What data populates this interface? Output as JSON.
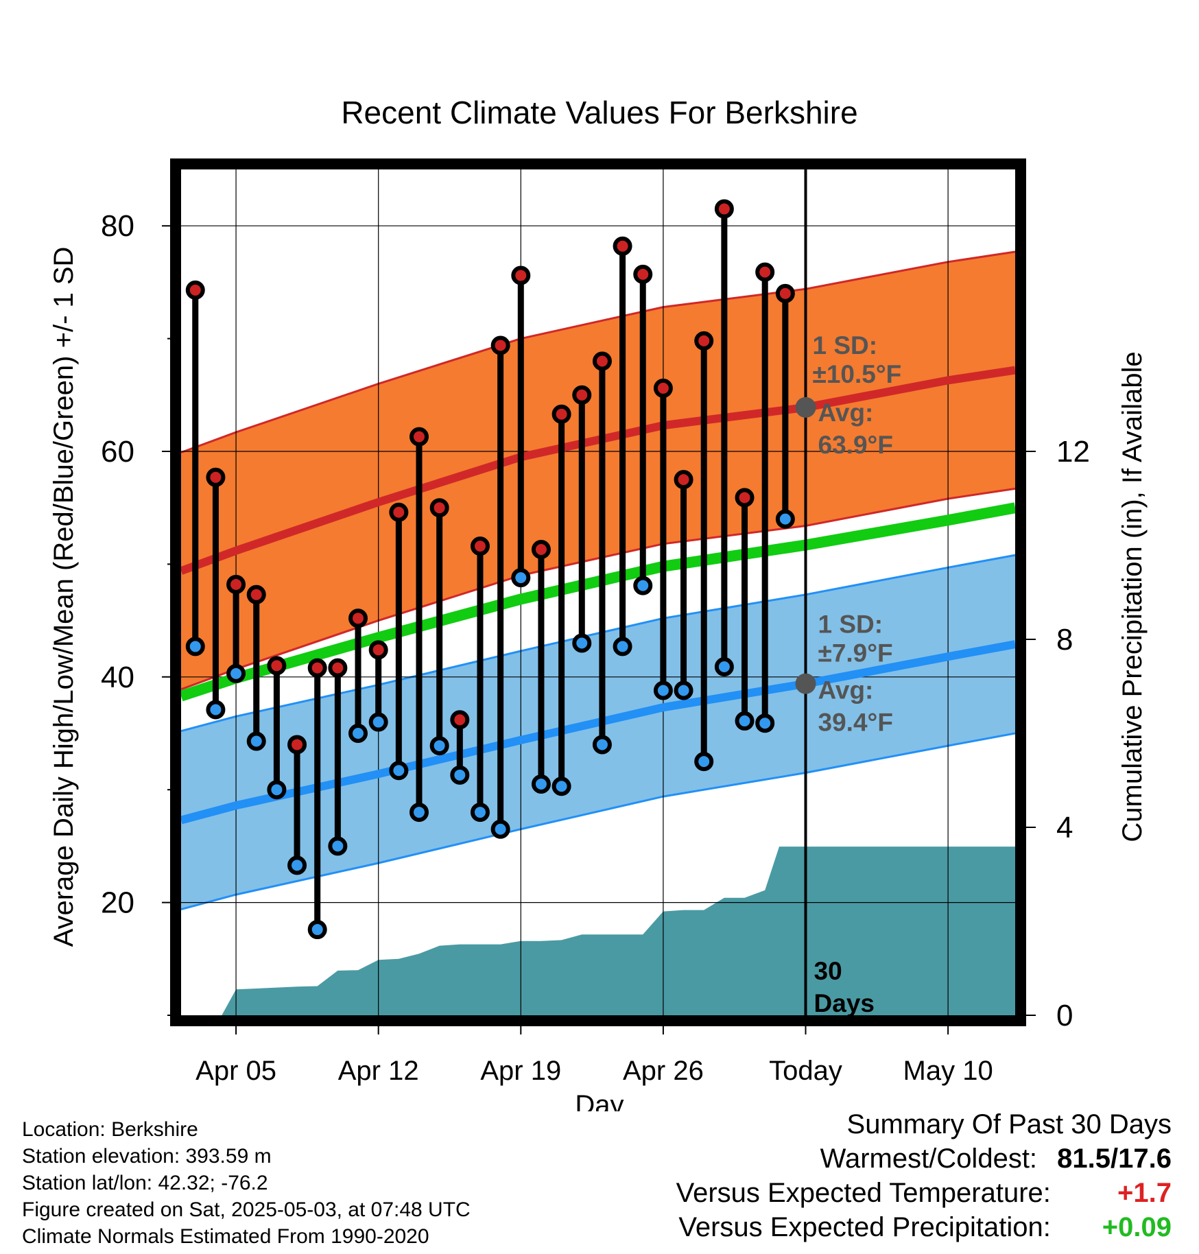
{
  "chart_data": {
    "type": "line",
    "title": "Recent Climate Values For Berkshire",
    "xlabel": "Day",
    "ylabel": "Average Daily High/Low/Mean (Red/Blue/Green) +/- 1 SD",
    "y2label": "Cumulative Precipitation (in), If Available",
    "x_tick_labels": [
      "Apr 05",
      "Apr 12",
      "Apr 19",
      "Apr 26",
      "Today",
      "May 10"
    ],
    "x_tick_days": [
      0,
      7,
      14,
      21,
      28,
      35
    ],
    "x_range_days": [
      -2.7,
      38.3
    ],
    "ylim": [
      10,
      85
    ],
    "y_ticks": [
      20,
      40,
      60,
      80
    ],
    "y2lim": [
      0,
      18
    ],
    "y2_ticks": [
      0,
      4,
      8,
      12
    ],
    "grid": true,
    "today_day": 28,
    "today_label": "30\nDays",
    "high_normal": {
      "x": [
        -2.7,
        0,
        7,
        14,
        21,
        28,
        35,
        38.3
      ],
      "mean": [
        49.4,
        51.2,
        55.5,
        59.5,
        62.3,
        63.9,
        66.3,
        67.2
      ],
      "sd": 10.5,
      "annotation_sd": "1 SD:\n±10.5°F",
      "annotation_avg": "Avg:\n63.9°F"
    },
    "low_normal": {
      "x": [
        -2.7,
        0,
        7,
        14,
        21,
        28,
        35,
        38.3
      ],
      "mean": [
        27.3,
        28.6,
        31.4,
        34.4,
        37.3,
        39.4,
        41.8,
        42.9
      ],
      "sd": 7.9,
      "annotation_sd": "1 SD:\n±7.9°F",
      "annotation_avg": "Avg:\n39.4°F"
    },
    "mean_normal": {
      "x": [
        -2.7,
        0,
        7,
        14,
        21,
        28,
        35,
        38.3
      ],
      "values": [
        38.3,
        39.9,
        43.5,
        46.9,
        49.8,
        51.7,
        53.9,
        55.0
      ]
    },
    "days": [
      -2,
      -1,
      0,
      1,
      2,
      3,
      4,
      5,
      6,
      7,
      8,
      9,
      10,
      11,
      12,
      13,
      14,
      15,
      16,
      17,
      18,
      19,
      20,
      21,
      22,
      23,
      24,
      25,
      26,
      27
    ],
    "highs": [
      74.3,
      57.7,
      48.2,
      47.3,
      41.0,
      34.0,
      40.8,
      40.8,
      45.2,
      42.4,
      54.6,
      61.3,
      55.0,
      36.2,
      51.6,
      69.4,
      75.6,
      51.3,
      63.3,
      65.0,
      68.0,
      78.2,
      75.7,
      65.6,
      57.5,
      69.8,
      81.5,
      55.9,
      75.9,
      74.0
    ],
    "lows": [
      42.7,
      37.1,
      40.3,
      34.3,
      30.0,
      23.3,
      17.6,
      25.0,
      35.0,
      36.0,
      31.7,
      28.0,
      33.9,
      31.3,
      28.0,
      26.5,
      48.8,
      30.5,
      30.3,
      43.0,
      34.0,
      42.7,
      48.1,
      38.8,
      38.8,
      32.5,
      40.9,
      36.1,
      35.9,
      54.0
    ],
    "precip_cumulative": {
      "x": [
        -0.7,
        0,
        1,
        2,
        3,
        4,
        5,
        6,
        7,
        8,
        9,
        10,
        11,
        12,
        13,
        14,
        15,
        16,
        17,
        18,
        19,
        20,
        21,
        22,
        23,
        24,
        25,
        26,
        26.7,
        38.3
      ],
      "values": [
        0.0,
        0.55,
        0.57,
        0.59,
        0.61,
        0.62,
        0.95,
        0.96,
        1.18,
        1.2,
        1.31,
        1.48,
        1.51,
        1.51,
        1.51,
        1.58,
        1.58,
        1.6,
        1.72,
        1.72,
        1.72,
        1.72,
        2.21,
        2.24,
        2.24,
        2.5,
        2.5,
        2.66,
        3.59,
        3.59
      ]
    }
  },
  "colors": {
    "high_band": "#f47b30",
    "high_line": "#d02828",
    "low_band": "#82c0e8",
    "low_line": "#2290f5",
    "mean_line": "#11cc11",
    "precip": "#4a9aa3",
    "high_dot": "#cc2222",
    "low_dot": "#3399ee",
    "annotation": "#555555",
    "positive_temp": "#dd2222",
    "positive_precip": "#22bb22"
  },
  "info": {
    "location": "Location: Berkshire",
    "elevation": "Station elevation: 393.59 m",
    "latlon": "Station lat/lon: 42.32; -76.2",
    "created": "Figure created on Sat, 2025-05-03, at 07:48 UTC",
    "normals": "Climate Normals Estimated From 1990-2020"
  },
  "summary": {
    "heading": "Summary Of Past 30 Days",
    "warmest_coldest_label": "Warmest/Coldest:",
    "warmest_coldest_value": "81.5/17.6",
    "temp_label": "Versus Expected Temperature:",
    "temp_value": "+1.7",
    "precip_label": "Versus Expected Precipitation:",
    "precip_value": "+0.09"
  }
}
